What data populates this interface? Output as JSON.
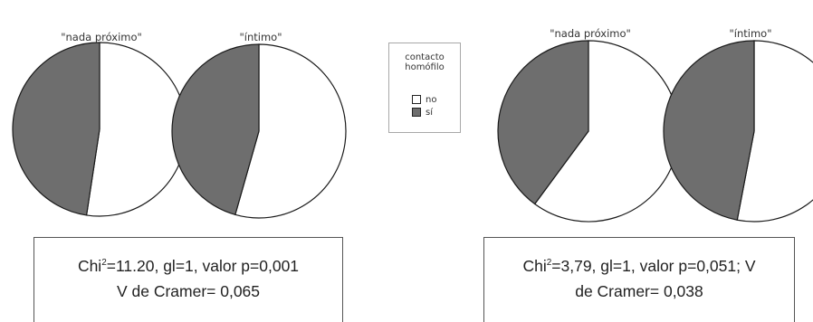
{
  "chart_data": [
    {
      "type": "pie",
      "title": "",
      "slices": [
        {
          "label": "no",
          "value": 0.524
        },
        {
          "label": "sí",
          "value": 0.476
        }
      ],
      "pie_titles": [
        "\"nada próximo\"",
        "\"íntimo\""
      ],
      "pies": [
        {
          "title": "\"nada próximo\"",
          "no": 0.524,
          "si": 0.476
        },
        {
          "title": "\"íntimo\"",
          "no": 0.544,
          "si": 0.456
        }
      ]
    },
    {
      "type": "pie",
      "title": "",
      "pies": [
        {
          "title": "\"nada próximo\"",
          "no": 0.601,
          "si": 0.399
        },
        {
          "title": "\"íntimo\"",
          "no": 0.53,
          "si": 0.47
        }
      ]
    }
  ],
  "legend": {
    "title": "contacto\nhomófilo",
    "items": [
      {
        "label": "no",
        "color": "#ffffff"
      },
      {
        "label": "sí",
        "color": "#6e6e6e"
      }
    ]
  },
  "colors": {
    "no": "#ffffff",
    "si": "#6e6e6e",
    "stroke": "#1a1a1a"
  },
  "stats": [
    {
      "chi_prefix": "Chi",
      "chi_sup": "2",
      "line1_rest": "=11.20, gl=1, valor p=0,001",
      "line2": "V de Cramer= 0,065"
    },
    {
      "chi_prefix": "Chi",
      "chi_sup": "2",
      "line1_rest": "=3,79, gl=1, valor p=0,051; V",
      "line2": "de Cramer= 0,038"
    }
  ]
}
